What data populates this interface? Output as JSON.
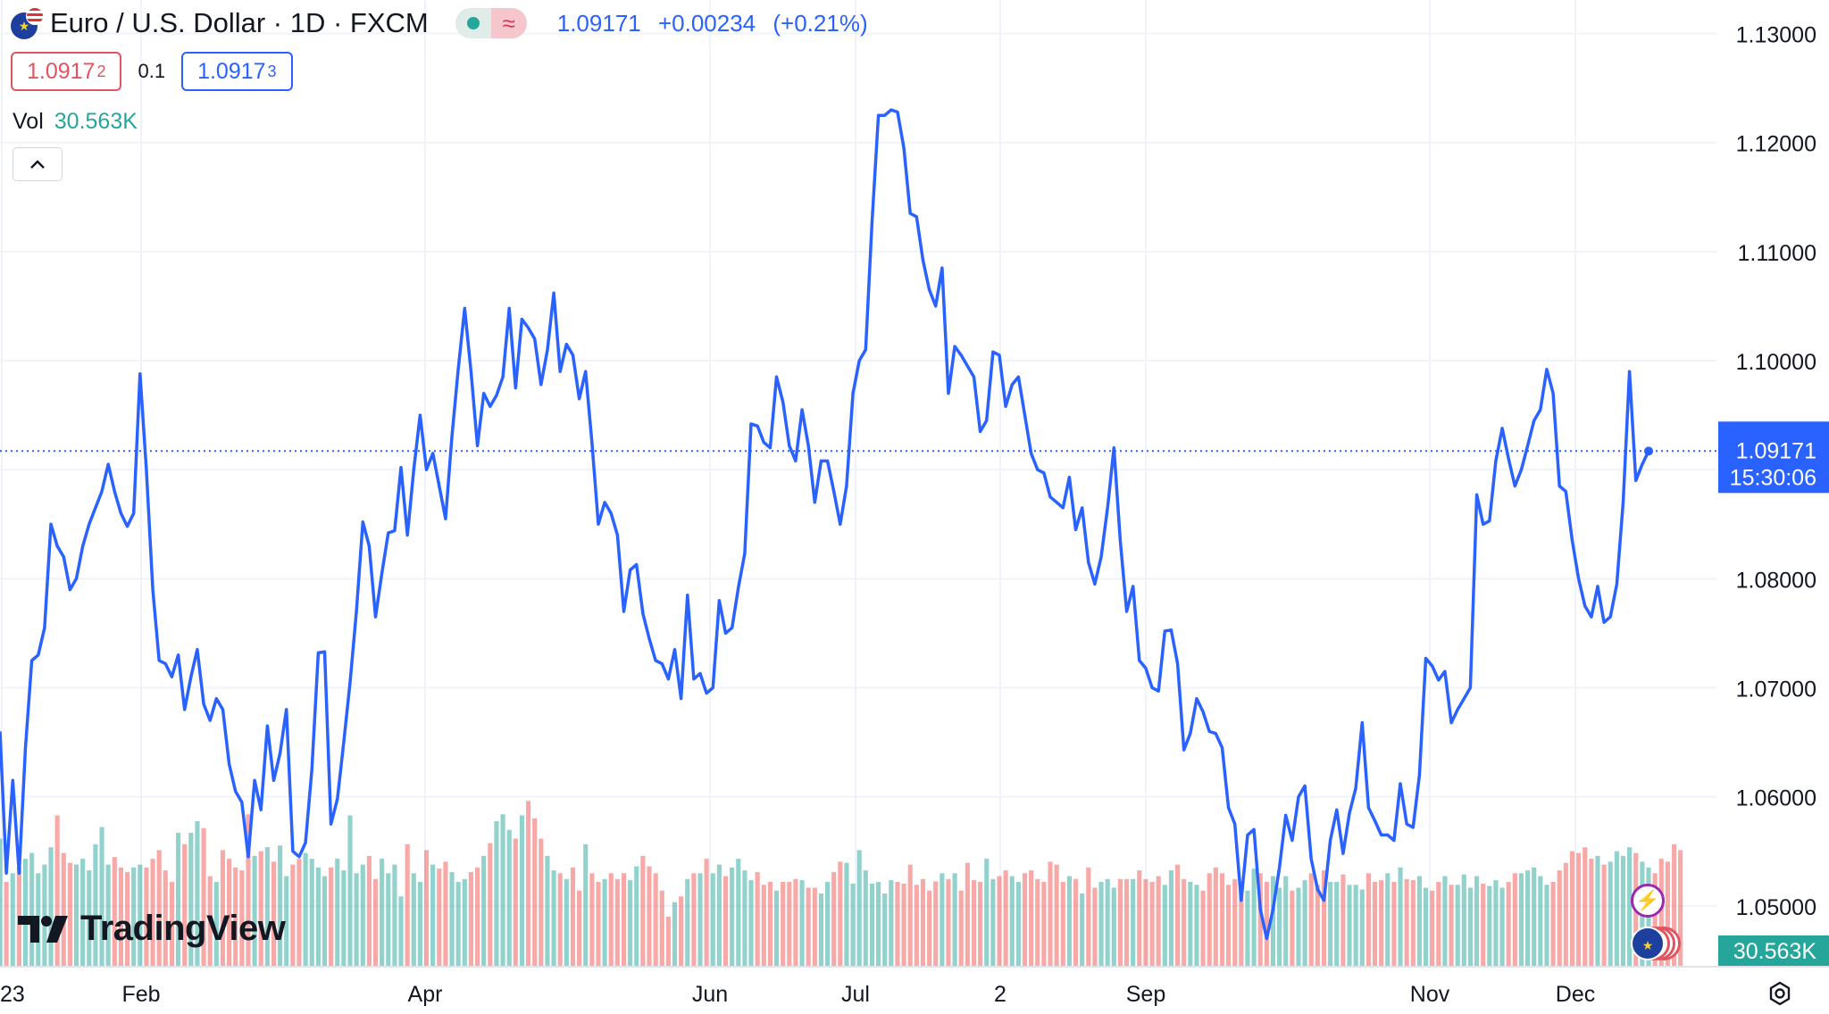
{
  "header": {
    "symbol_title": "Euro / U.S. Dollar · 1D · FXCM",
    "last_price": "1.09171",
    "change": "+0.00234",
    "change_pct": "(+0.21%)",
    "sell_price": "1.0917",
    "sell_price_pip": "2",
    "spread": "0.1",
    "buy_price": "1.0917",
    "buy_price_pip": "3",
    "status_wave_glyph": "≈"
  },
  "volume_legend": {
    "label": "Vol",
    "value": "30.563K"
  },
  "price_scale": {
    "current_label": "1.09171",
    "countdown": "15:30:06",
    "volume_label": "30.563K"
  },
  "brand": {
    "name": "TradingView"
  },
  "icons": {
    "collapse": "chevron-up-icon",
    "bolt": "lightning-icon",
    "settings": "gear-icon",
    "flag": "eur-usd-flag-icon"
  },
  "colors": {
    "line": "#2962ff",
    "volume_up": "#26a69a",
    "volume_down": "#ef5350",
    "price_label_bg": "#2962ff",
    "volume_label_bg": "#26a69a"
  },
  "chart_data": {
    "type": "line",
    "title": "Euro / U.S. Dollar · 1D · FXCM",
    "x_tick_labels": [
      "23",
      "Feb",
      "Apr",
      "Jun",
      "Jul",
      "2",
      "Sep",
      "Nov",
      "Dec"
    ],
    "y_ticks": [
      "1.05000",
      "1.06000",
      "1.07000",
      "1.08000",
      "1.09000",
      "1.10000",
      "1.11000",
      "1.12000",
      "1.13000"
    ],
    "ylim": [
      1.0445,
      1.1316
    ],
    "current_price": 1.09171,
    "grid": true,
    "series": [
      {
        "values": [
          1.066,
          1.053,
          1.0615,
          1.053,
          1.0645,
          1.0725,
          1.073,
          1.0755,
          1.085,
          1.083,
          1.082,
          1.079,
          1.08,
          1.083,
          1.085,
          1.0865,
          1.088,
          1.0905,
          1.088,
          1.086,
          1.0848,
          1.086,
          1.0988,
          1.09,
          1.079,
          1.0725,
          1.0722,
          1.071,
          1.073,
          1.068,
          1.071,
          1.0735,
          1.0685,
          1.067,
          1.069,
          1.068,
          1.063,
          1.0605,
          1.0595,
          1.0545,
          1.0615,
          1.0588,
          1.0665,
          1.0615,
          1.064,
          1.068,
          1.055,
          1.0545,
          1.0558,
          1.0625,
          1.0732,
          1.0733,
          1.0575,
          1.0598,
          1.065,
          1.0705,
          1.077,
          1.0852,
          1.083,
          1.0765,
          1.0805,
          1.0842,
          1.0844,
          1.0902,
          1.084,
          1.09,
          1.095,
          1.09,
          1.0915,
          1.0885,
          1.0855,
          1.093,
          1.0993,
          1.1048,
          1.099,
          1.0922,
          1.097,
          1.0958,
          1.0968,
          1.0985,
          1.1048,
          1.0975,
          1.1038,
          1.103,
          1.102,
          1.0978,
          1.101,
          1.1062,
          1.099,
          1.1015,
          1.1005,
          1.0965,
          1.099,
          1.0925,
          1.085,
          1.087,
          1.086,
          1.084,
          1.077,
          1.0808,
          1.0813,
          1.0768,
          1.0745,
          1.0725,
          1.0722,
          1.0708,
          1.0735,
          1.069,
          1.0785,
          1.0708,
          1.0713,
          1.0695,
          1.07,
          1.078,
          1.075,
          1.0755,
          1.0792,
          1.0823,
          1.0942,
          1.094,
          1.0925,
          1.092,
          1.0985,
          1.0962,
          1.0922,
          1.0908,
          1.0955,
          1.0922,
          1.087,
          1.0908,
          1.0908,
          1.088,
          1.085,
          1.0885,
          1.097,
          1.1,
          1.101,
          1.1128,
          1.1225,
          1.1225,
          1.123,
          1.1228,
          1.1195,
          1.1135,
          1.1132,
          1.1092,
          1.1065,
          1.105,
          1.1085,
          1.097,
          1.1013,
          1.1005,
          1.0995,
          1.0985,
          1.0935,
          1.0945,
          1.1008,
          1.1005,
          1.0958,
          1.0978,
          1.0985,
          1.095,
          1.0915,
          1.09,
          1.0897,
          1.0875,
          1.087,
          1.0865,
          1.0893,
          1.0845,
          1.0865,
          1.0815,
          1.0795,
          1.082,
          1.0865,
          1.092,
          1.0835,
          1.077,
          1.0793,
          1.0725,
          1.0718,
          1.07,
          1.0697,
          1.0752,
          1.0753,
          1.0722,
          1.0643,
          1.0658,
          1.069,
          1.0678,
          1.066,
          1.0658,
          1.0645,
          1.059,
          1.0575,
          1.0505,
          1.0565,
          1.057,
          1.0497,
          1.047,
          1.0497,
          1.0535,
          1.0583,
          1.056,
          1.06,
          1.061,
          1.0543,
          1.0515,
          1.0505,
          1.056,
          1.0588,
          1.0548,
          1.0585,
          1.0608,
          1.0668,
          1.059,
          1.0578,
          1.0565,
          1.0565,
          1.056,
          1.0612,
          1.0575,
          1.0572,
          1.062,
          1.0727,
          1.072,
          1.0707,
          1.0715,
          1.0668,
          1.068,
          1.069,
          1.07,
          1.0877,
          1.085,
          1.0853,
          1.0908,
          1.0938,
          1.091,
          1.0885,
          1.09,
          1.0922,
          1.0945,
          1.0955,
          1.0992,
          1.097,
          1.0885,
          1.088,
          1.0835,
          1.08,
          1.0775,
          1.0765,
          1.0793,
          1.076,
          1.0765,
          1.0795,
          1.087,
          1.099,
          1.089,
          1.0905,
          1.0917
        ]
      }
    ],
    "volume_series": {
      "values": [
        0.22,
        0.145,
        0.16,
        0.17,
        0.185,
        0.195,
        0.16,
        0.175,
        0.205,
        0.26,
        0.195,
        0.178,
        0.175,
        0.185,
        0.165,
        0.21,
        0.24,
        0.175,
        0.188,
        0.17,
        0.162,
        0.17,
        0.175,
        0.17,
        0.185,
        0.2,
        0.165,
        0.145,
        0.23,
        0.21,
        0.23,
        0.25,
        0.238,
        0.155,
        0.145,
        0.2,
        0.185,
        0.17,
        0.165,
        0.262,
        0.19,
        0.198,
        0.205,
        0.18,
        0.208,
        0.155,
        0.175,
        0.185,
        0.195,
        0.185,
        0.17,
        0.155,
        0.17,
        0.185,
        0.165,
        0.26,
        0.16,
        0.175,
        0.19,
        0.15,
        0.185,
        0.16,
        0.175,
        0.12,
        0.21,
        0.16,
        0.145,
        0.2,
        0.175,
        0.168,
        0.18,
        0.162,
        0.145,
        0.15,
        0.162,
        0.17,
        0.19,
        0.212,
        0.25,
        0.262,
        0.235,
        0.22,
        0.26,
        0.285,
        0.255,
        0.22,
        0.19,
        0.165,
        0.16,
        0.15,
        0.17,
        0.13,
        0.21,
        0.16,
        0.145,
        0.15,
        0.16,
        0.15,
        0.16,
        0.148,
        0.172,
        0.19,
        0.172,
        0.16,
        0.13,
        0.085,
        0.11,
        0.12,
        0.15,
        0.16,
        0.16,
        0.185,
        0.16,
        0.175,
        0.155,
        0.17,
        0.185,
        0.165,
        0.148,
        0.162,
        0.14,
        0.145,
        0.13,
        0.145,
        0.145,
        0.15,
        0.148,
        0.135,
        0.135,
        0.125,
        0.145,
        0.162,
        0.18,
        0.178,
        0.142,
        0.2,
        0.165,
        0.142,
        0.145,
        0.125,
        0.148,
        0.145,
        0.142,
        0.175,
        0.14,
        0.15,
        0.13,
        0.146,
        0.16,
        0.15,
        0.16,
        0.13,
        0.178,
        0.148,
        0.145,
        0.185,
        0.15,
        0.155,
        0.165,
        0.155,
        0.145,
        0.16,
        0.165,
        0.15,
        0.145,
        0.18,
        0.175,
        0.145,
        0.155,
        0.15,
        0.125,
        0.17,
        0.135,
        0.145,
        0.15,
        0.135,
        0.15,
        0.15,
        0.15,
        0.165,
        0.15,
        0.145,
        0.155,
        0.14,
        0.165,
        0.175,
        0.15,
        0.145,
        0.14,
        0.13,
        0.16,
        0.17,
        0.16,
        0.14,
        0.15,
        0.142,
        0.13,
        0.168,
        0.16,
        0.145,
        0.155,
        0.135,
        0.155,
        0.13,
        0.135,
        0.148,
        0.16,
        0.14,
        0.165,
        0.145,
        0.145,
        0.158,
        0.14,
        0.14,
        0.132,
        0.16,
        0.145,
        0.148,
        0.16,
        0.145,
        0.17,
        0.15,
        0.148,
        0.155,
        0.135,
        0.13,
        0.145,
        0.155,
        0.14,
        0.14,
        0.158,
        0.135,
        0.155,
        0.142,
        0.138,
        0.148,
        0.135,
        0.145,
        0.16,
        0.16,
        0.165,
        0.17,
        0.155,
        0.14,
        0.145,
        0.165,
        0.178,
        0.198,
        0.195,
        0.205,
        0.185,
        0.19,
        0.175,
        0.18,
        0.198,
        0.19,
        0.205,
        0.195,
        0.18,
        0.17,
        0.16,
        0.185,
        0.18,
        0.21,
        0.2
      ],
      "up_down": "mixed"
    }
  }
}
